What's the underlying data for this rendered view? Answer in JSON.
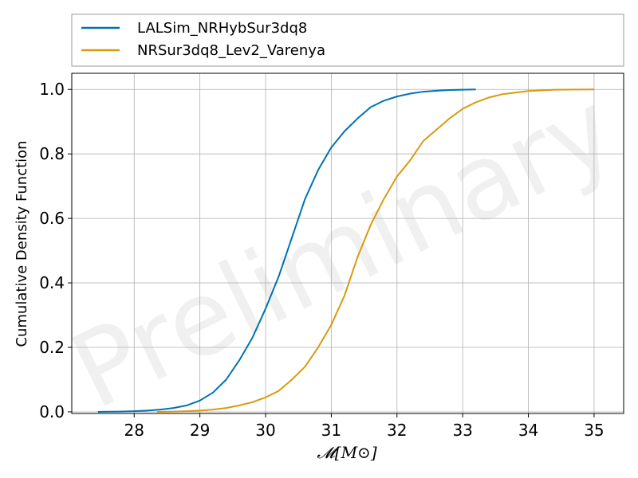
{
  "chart_data": {
    "type": "line",
    "title": "",
    "xlabel": "𝓜[M⊙]",
    "ylabel": "Cumulative Density Function",
    "xlim": [
      27.05,
      35.45
    ],
    "ylim": [
      -0.005,
      1.05
    ],
    "xticks": [
      28,
      29,
      30,
      31,
      32,
      33,
      34,
      35
    ],
    "yticks": [
      0.0,
      0.2,
      0.4,
      0.6,
      0.8,
      1.0
    ],
    "xtick_labels": [
      "28",
      "29",
      "30",
      "31",
      "32",
      "33",
      "34",
      "35"
    ],
    "ytick_labels": [
      "0.0",
      "0.2",
      "0.4",
      "0.6",
      "0.8",
      "1.0"
    ],
    "grid": true,
    "legend_position": "top, above plot",
    "watermark": "Preliminary",
    "series": [
      {
        "name": "LALSim_NRHybSur3dq8",
        "color": "#0072b2",
        "x": [
          27.45,
          27.8,
          28.0,
          28.2,
          28.4,
          28.6,
          28.8,
          29.0,
          29.2,
          29.4,
          29.6,
          29.8,
          30.0,
          30.2,
          30.4,
          30.6,
          30.8,
          31.0,
          31.2,
          31.4,
          31.6,
          31.8,
          32.0,
          32.2,
          32.4,
          32.6,
          32.8,
          33.0,
          33.2
        ],
        "y": [
          0.0,
          0.001,
          0.002,
          0.004,
          0.007,
          0.012,
          0.02,
          0.035,
          0.06,
          0.1,
          0.16,
          0.23,
          0.32,
          0.42,
          0.54,
          0.66,
          0.75,
          0.82,
          0.87,
          0.91,
          0.945,
          0.965,
          0.978,
          0.987,
          0.993,
          0.996,
          0.998,
          0.999,
          1.0
        ]
      },
      {
        "name": "NRSur3dq8_Lev2_Varenya",
        "color": "#d89a10",
        "x": [
          28.35,
          28.6,
          28.8,
          29.0,
          29.2,
          29.4,
          29.6,
          29.8,
          30.0,
          30.2,
          30.4,
          30.6,
          30.8,
          31.0,
          31.2,
          31.4,
          31.6,
          31.8,
          32.0,
          32.2,
          32.4,
          32.6,
          32.8,
          33.0,
          33.2,
          33.4,
          33.6,
          33.8,
          34.0,
          34.2,
          34.4,
          34.6,
          35.0
        ],
        "y": [
          0.0,
          0.001,
          0.002,
          0.004,
          0.007,
          0.012,
          0.02,
          0.03,
          0.045,
          0.065,
          0.1,
          0.14,
          0.2,
          0.27,
          0.36,
          0.48,
          0.58,
          0.66,
          0.73,
          0.78,
          0.84,
          0.875,
          0.91,
          0.94,
          0.96,
          0.975,
          0.985,
          0.99,
          0.995,
          0.997,
          0.999,
          0.9995,
          1.0
        ]
      }
    ]
  }
}
